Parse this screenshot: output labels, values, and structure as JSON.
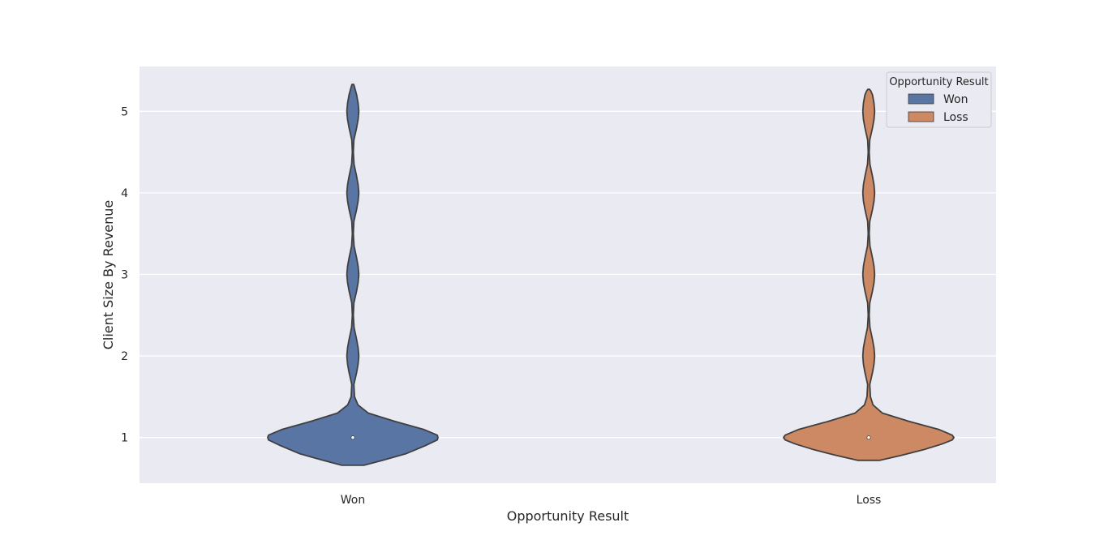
{
  "chart_data": {
    "type": "violin",
    "categories": [
      "Won",
      "Loss"
    ],
    "xlabel": "Opportunity Result",
    "ylabel": "Client Size By Revenue",
    "ylim": [
      0.44,
      5.55
    ],
    "yticks": [
      1,
      2,
      3,
      4,
      5
    ],
    "grid": true,
    "legend": {
      "title": "Opportunity Result",
      "placement": "top-right",
      "entries": [
        "Won",
        "Loss"
      ]
    },
    "series": [
      {
        "name": "Won",
        "color": "#5975a4",
        "median": 1,
        "y_min": 0.66,
        "y_max": 5.33,
        "density": [
          [
            0.66,
            0.13
          ],
          [
            0.72,
            0.35
          ],
          [
            0.8,
            0.62
          ],
          [
            0.9,
            0.85
          ],
          [
            0.97,
            0.99
          ],
          [
            1.0,
            1.0
          ],
          [
            1.03,
            0.99
          ],
          [
            1.1,
            0.83
          ],
          [
            1.2,
            0.49
          ],
          [
            1.3,
            0.18
          ],
          [
            1.4,
            0.06
          ],
          [
            1.5,
            0.02
          ],
          [
            1.65,
            0.012
          ],
          [
            1.8,
            0.045
          ],
          [
            1.9,
            0.062
          ],
          [
            2.0,
            0.07
          ],
          [
            2.1,
            0.062
          ],
          [
            2.2,
            0.045
          ],
          [
            2.35,
            0.014
          ],
          [
            2.5,
            0.006
          ],
          [
            2.65,
            0.012
          ],
          [
            2.8,
            0.045
          ],
          [
            2.9,
            0.062
          ],
          [
            3.0,
            0.07
          ],
          [
            3.1,
            0.062
          ],
          [
            3.2,
            0.045
          ],
          [
            3.35,
            0.014
          ],
          [
            3.5,
            0.006
          ],
          [
            3.65,
            0.012
          ],
          [
            3.8,
            0.045
          ],
          [
            3.9,
            0.062
          ],
          [
            4.0,
            0.07
          ],
          [
            4.1,
            0.062
          ],
          [
            4.2,
            0.045
          ],
          [
            4.35,
            0.014
          ],
          [
            4.5,
            0.006
          ],
          [
            4.65,
            0.012
          ],
          [
            4.8,
            0.045
          ],
          [
            4.9,
            0.062
          ],
          [
            5.0,
            0.07
          ],
          [
            5.1,
            0.062
          ],
          [
            5.2,
            0.045
          ],
          [
            5.28,
            0.025
          ],
          [
            5.33,
            0.01
          ]
        ]
      },
      {
        "name": "Loss",
        "color": "#cc8963",
        "median": 1,
        "y_min": 0.72,
        "y_max": 5.27,
        "density": [
          [
            0.72,
            0.13
          ],
          [
            0.78,
            0.38
          ],
          [
            0.85,
            0.64
          ],
          [
            0.92,
            0.86
          ],
          [
            0.97,
            0.98
          ],
          [
            1.0,
            1.0
          ],
          [
            1.03,
            0.98
          ],
          [
            1.1,
            0.82
          ],
          [
            1.2,
            0.47
          ],
          [
            1.3,
            0.16
          ],
          [
            1.4,
            0.05
          ],
          [
            1.5,
            0.02
          ],
          [
            1.65,
            0.012
          ],
          [
            1.8,
            0.045
          ],
          [
            1.9,
            0.062
          ],
          [
            2.0,
            0.07
          ],
          [
            2.1,
            0.062
          ],
          [
            2.2,
            0.045
          ],
          [
            2.35,
            0.014
          ],
          [
            2.5,
            0.006
          ],
          [
            2.65,
            0.012
          ],
          [
            2.8,
            0.045
          ],
          [
            2.9,
            0.062
          ],
          [
            3.0,
            0.07
          ],
          [
            3.1,
            0.062
          ],
          [
            3.2,
            0.045
          ],
          [
            3.35,
            0.014
          ],
          [
            3.5,
            0.006
          ],
          [
            3.65,
            0.012
          ],
          [
            3.8,
            0.045
          ],
          [
            3.9,
            0.062
          ],
          [
            4.0,
            0.07
          ],
          [
            4.1,
            0.062
          ],
          [
            4.2,
            0.045
          ],
          [
            4.35,
            0.014
          ],
          [
            4.5,
            0.006
          ],
          [
            4.65,
            0.012
          ],
          [
            4.8,
            0.045
          ],
          [
            4.9,
            0.062
          ],
          [
            5.0,
            0.07
          ],
          [
            5.1,
            0.062
          ],
          [
            5.2,
            0.045
          ],
          [
            5.25,
            0.025
          ],
          [
            5.27,
            0.01
          ]
        ]
      }
    ]
  }
}
